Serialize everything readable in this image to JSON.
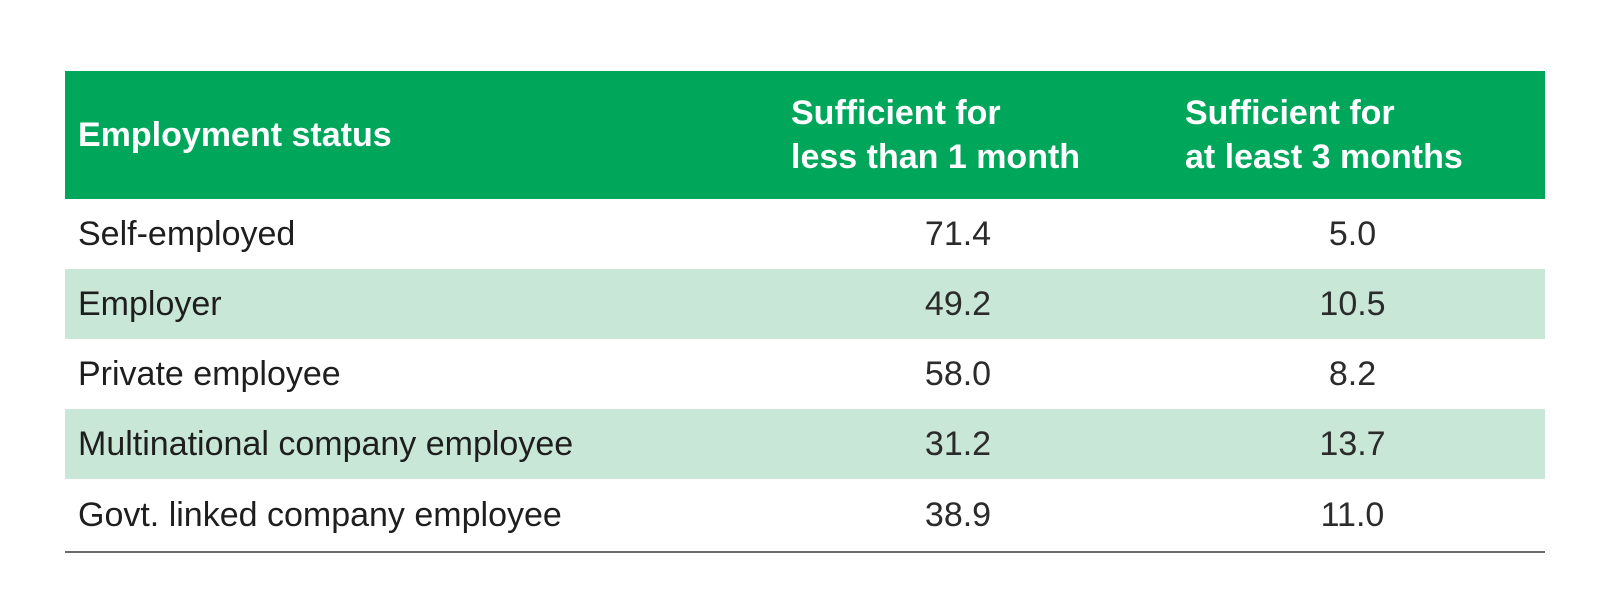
{
  "table": {
    "headers": {
      "employment_status": "Employment status",
      "col1_line1": "Sufficient for",
      "col1_line2": "less than 1 month",
      "col2_line1": "Sufficient for",
      "col2_line2": "at least 3 months"
    },
    "rows": [
      {
        "label": "Self-employed",
        "less_than_1_month": "71.4",
        "at_least_3_months": "5.0"
      },
      {
        "label": "Employer",
        "less_than_1_month": "49.2",
        "at_least_3_months": "10.5"
      },
      {
        "label": "Private employee",
        "less_than_1_month": "58.0",
        "at_least_3_months": "8.2"
      },
      {
        "label": "Multinational company employee",
        "less_than_1_month": "31.2",
        "at_least_3_months": "13.7"
      },
      {
        "label": "Govt. linked company employee",
        "less_than_1_month": "38.9",
        "at_least_3_months": "11.0"
      }
    ]
  },
  "colors": {
    "header_bg": "#00a65a",
    "alt_row_bg": "#c9e7d7",
    "bottom_rule": "#6b6b6b"
  }
}
